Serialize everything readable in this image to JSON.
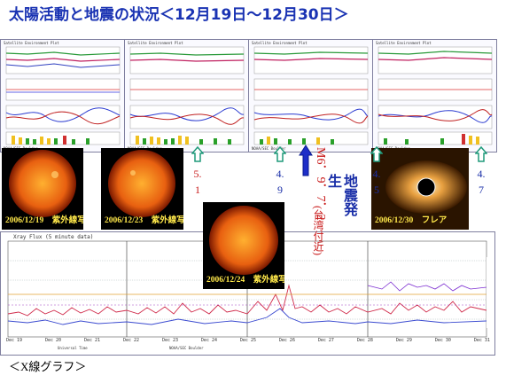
{
  "title": "太陽活動と地震の状況＜12月19日～12月30日＞",
  "goes_panels": [
    {
      "id": "p1",
      "header": "Satellite Environment Plot",
      "footer": "NOAA/SEC Boulder",
      "time_label": "Universal Time"
    },
    {
      "id": "p2",
      "header": "Satellite Environment Plot",
      "footer": "NOAA/SEC Boulder",
      "time_label": "Universal Time"
    },
    {
      "id": "p3",
      "header": "Satellite Environment Plot",
      "footer": "NOAA/SEC Boulder",
      "time_label": "Universal Time"
    },
    {
      "id": "p4",
      "header": "Satellite Environment Plot",
      "footer": "NOAA/SEC Boulder",
      "time_label": "Universal Time"
    }
  ],
  "sun_images": [
    {
      "caption": "2006/12/19　紫外線写真"
    },
    {
      "caption": "2006/12/23　紫外線写真"
    },
    {
      "caption": "2006/12/24　紫外線写真"
    },
    {
      "caption": "2006/12/30　フレア"
    }
  ],
  "annotations": {
    "a1": {
      "line1": "5.",
      "line2": "1"
    },
    "a2": {
      "line1": "4.",
      "line2": "9"
    },
    "a3": {
      "line1": "4.",
      "line2": "5"
    },
    "a4": {
      "line1": "4.",
      "line2": "7"
    },
    "quake_mag": "M6．9．7．2",
    "quake_place": "(台湾付近)",
    "quake_label": "地震発生"
  },
  "xray": {
    "header": "Xray Flux (5 minute data)",
    "days": [
      "Dec 19",
      "Dec 20",
      "Dec 21",
      "Dec 22",
      "Dec 23",
      "Dec 24",
      "Dec 25",
      "Dec 26",
      "Dec 27",
      "Dec 28",
      "Dec 29",
      "Dec 30",
      "Dec 31"
    ],
    "footer": "NOAA/SEC Boulder",
    "time_label": "Universal Time"
  },
  "footer_label": "＜X線グラフ＞",
  "colors": {
    "title": "#1a33b3",
    "arrow_green": "#1f9a7a",
    "arrow_blue": "#1e2ec8",
    "red": "#c81818"
  }
}
